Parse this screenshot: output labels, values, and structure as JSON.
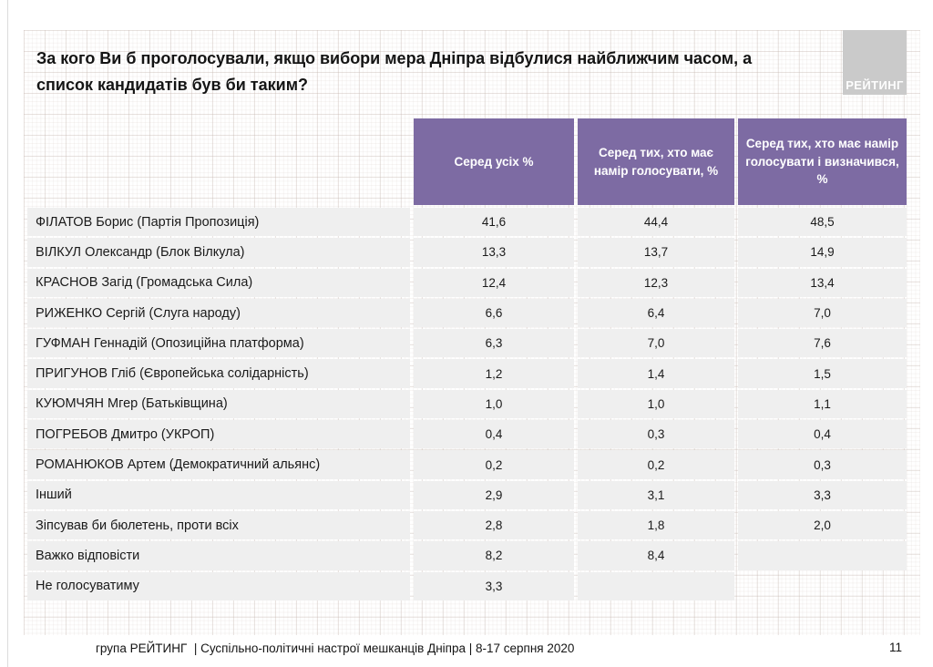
{
  "header": {
    "title_line1": "За кого Ви б проголосували, якщо вибори мера Дніпра відбулися найближчим часом, а",
    "title_line2": "список кандидатів був би таким?",
    "logo": "РЕЙТИНГ"
  },
  "table": {
    "columns": [
      "Серед усіх %",
      "Серед тих, хто має намір голосувати, %",
      "Серед тих, хто має намір голосувати і визначився, %"
    ],
    "rows": [
      {
        "label": "ФІЛАТОВ Борис (Партія Пропозиція)",
        "values": [
          "41,6",
          "44,4",
          "48,5"
        ]
      },
      {
        "label": "ВІЛКУЛ Олександр (Блок Вілкула)",
        "values": [
          "13,3",
          "13,7",
          "14,9"
        ]
      },
      {
        "label": "КРАСНОВ Загід (Громадська Сила)",
        "values": [
          "12,4",
          "12,3",
          "13,4"
        ]
      },
      {
        "label": "РИЖЕНКО Сергій (Слуга народу)",
        "values": [
          "6,6",
          "6,4",
          "7,0"
        ]
      },
      {
        "label": "ГУФМАН Геннадій (Опозиційна платформа)",
        "values": [
          "6,3",
          "7,0",
          "7,6"
        ]
      },
      {
        "label": "ПРИГУНОВ Гліб (Європейська солідарність)",
        "values": [
          "1,2",
          "1,4",
          "1,5"
        ]
      },
      {
        "label": "КУЮМЧЯН Мгер (Батьківщина)",
        "values": [
          "1,0",
          "1,0",
          "1,1"
        ]
      },
      {
        "label": "ПОГРЕБОВ Дмитро (УКРОП)",
        "values": [
          "0,4",
          "0,3",
          "0,4"
        ]
      },
      {
        "label": "РОМАНЮКОВ Артем (Демократичний альянс)",
        "values": [
          "0,2",
          "0,2",
          "0,3"
        ]
      },
      {
        "label": "Інший",
        "values": [
          "2,9",
          "3,1",
          "3,3"
        ]
      },
      {
        "label": "Зіпсував би бюлетень, проти всіх",
        "values": [
          "2,8",
          "1,8",
          "2,0"
        ]
      },
      {
        "label": "Важко відповісти",
        "values": [
          "8,2",
          "8,4",
          ""
        ]
      },
      {
        "label": "Не голосуватиму",
        "values": [
          "3,3",
          "",
          null
        ]
      }
    ]
  },
  "footer": {
    "text": "група РЕЙТИНГ  | Суспільно-політичні настрої мешканців Дніпра | 8-17 серпня 2020",
    "page_number": "11"
  },
  "colors": {
    "header_purple": "#7d6ba3",
    "row_gray": "#efefef",
    "logo_gray": "#cacaca"
  },
  "chart_data": {
    "type": "table",
    "title": "За кого Ви б проголосували, якщо вибори мера Дніпра відбулися найближчим часом, а список кандидатів був би таким?",
    "columns": [
      "Серед усіх %",
      "Серед тих, хто має намір голосувати, %",
      "Серед тих, хто має намір голосувати і визначився, %"
    ],
    "categories": [
      "ФІЛАТОВ Борис (Партія Пропозиція)",
      "ВІЛКУЛ Олександр (Блок Вілкула)",
      "КРАСНОВ Загід (Громадська Сила)",
      "РИЖЕНКО Сергій (Слуга народу)",
      "ГУФМАН Геннадій (Опозиційна платформа)",
      "ПРИГУНОВ Гліб (Європейська солідарність)",
      "КУЮМЧЯН Мгер (Батьківщина)",
      "ПОГРЕБОВ Дмитро (УКРОП)",
      "РОМАНЮКОВ Артем (Демократичний альянс)",
      "Інший",
      "Зіпсував би бюлетень, проти всіх",
      "Важко відповісти",
      "Не голосуватиму"
    ],
    "series": [
      {
        "name": "Серед усіх %",
        "values": [
          41.6,
          13.3,
          12.4,
          6.6,
          6.3,
          1.2,
          1.0,
          0.4,
          0.2,
          2.9,
          2.8,
          8.2,
          3.3
        ]
      },
      {
        "name": "Серед тих, хто має намір голосувати, %",
        "values": [
          44.4,
          13.7,
          12.3,
          6.4,
          7.0,
          1.4,
          1.0,
          0.3,
          0.2,
          3.1,
          1.8,
          8.4,
          null
        ]
      },
      {
        "name": "Серед тих, хто має намір голосувати і визначився, %",
        "values": [
          48.5,
          14.9,
          13.4,
          7.0,
          7.6,
          1.5,
          1.1,
          0.4,
          0.3,
          3.3,
          2.0,
          null,
          null
        ]
      }
    ]
  }
}
